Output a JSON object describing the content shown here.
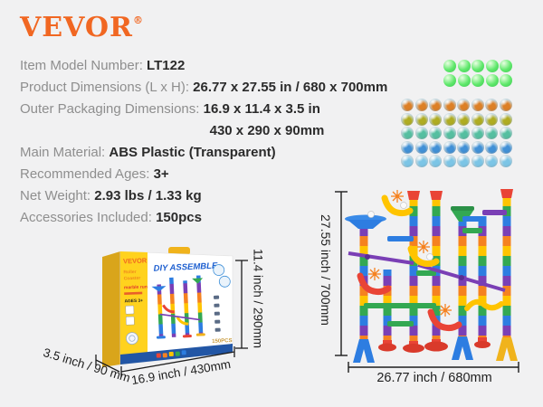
{
  "background_color": "#F1F1F2",
  "brand": {
    "logo_text": "VEVOR",
    "registered_mark": "®",
    "logo_color": "#F16722"
  },
  "specs": {
    "rows": [
      {
        "label": "Item Model Number: ",
        "value": "LT122"
      },
      {
        "label": "Product Dimensions (L x H): ",
        "value": "26.77 x 27.55 in / 680 x 700mm"
      },
      {
        "label": "Outer Packaging Dimensions: ",
        "value": "16.9 x 11.4 x 3.5 in",
        "value_line2": "430 x 290 x 90mm"
      },
      {
        "label": "Main Material: ",
        "value": "ABS Plastic (Transparent)"
      },
      {
        "label": "Recommended Ages: ",
        "value": "3+"
      },
      {
        "label": "Net Weight: ",
        "value": "2.93 lbs / 1.33 kg"
      },
      {
        "label": "Accessories Included: ",
        "value": "150pcs"
      }
    ],
    "label_color": "#8E8E8E",
    "value_color": "#2B2B2B"
  },
  "marbles": {
    "glow": {
      "rows": 2,
      "cols": 5,
      "color": "#5FE86B"
    },
    "glass": {
      "rows": 5,
      "cols": 8,
      "row_colors": [
        "#DD8026",
        "#AFAC22",
        "#55BFA0",
        "#4190D6",
        "#7CC5E6"
      ]
    }
  },
  "box_figure": {
    "print": {
      "brand": "VEVOR",
      "side_line1": "Roller",
      "side_line2": "Coaster",
      "side_line3": "marble run",
      "ages": "AGES 3+",
      "title": "DIY ASSEMBLE",
      "pieces": "150PCS"
    },
    "dimensions": {
      "depth": "3.5 inch / 90 mm",
      "width": "16.9 inch / 430mm",
      "height": "11.4 inch / 290mm"
    }
  },
  "tower_figure": {
    "dimensions": {
      "height": "27.55 inch / 700mm",
      "width": "26.77 inch /  680mm"
    }
  }
}
